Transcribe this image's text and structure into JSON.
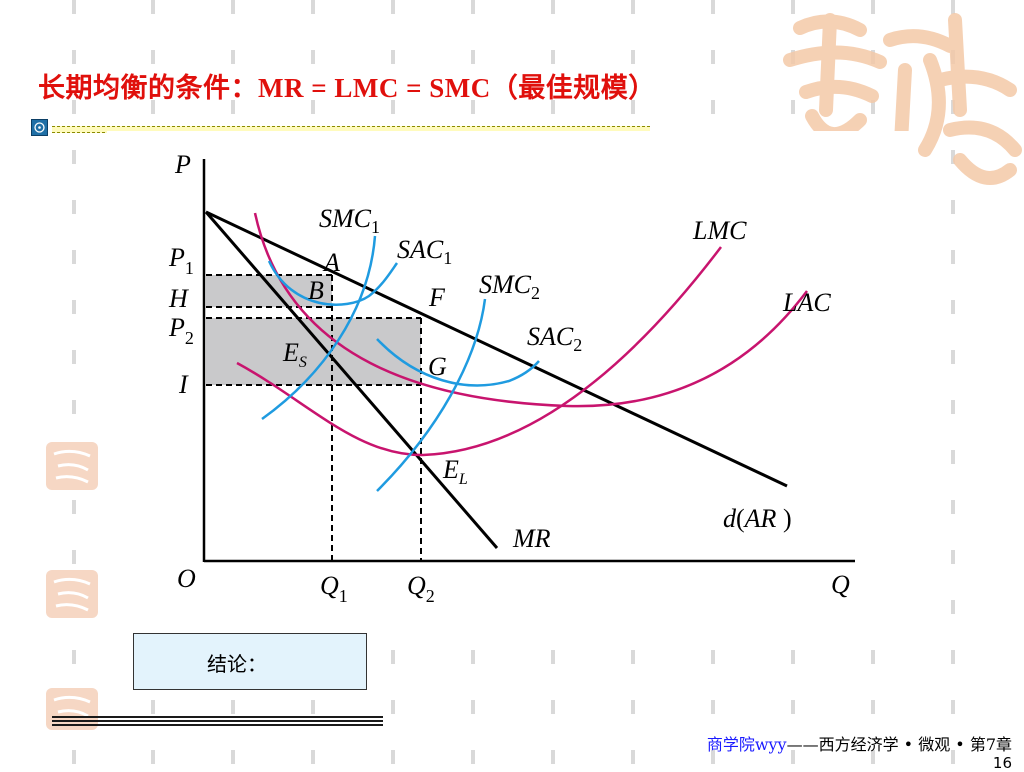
{
  "slide": {
    "title_cn": "长期均衡的条件：",
    "title_formula": "MR = LMC = SMC",
    "title_suffix": "（最佳规模）",
    "conclusion_label": "结论：",
    "footer_school": "商学院wyy",
    "footer_course": "——西方经济学 • 微观 • 第7章",
    "page_number": "16"
  },
  "diagram": {
    "axis_y": "P",
    "axis_x": "Q",
    "origin": "O",
    "price_labels": [
      "P1",
      "H",
      "P2",
      "I"
    ],
    "quantity_labels": [
      "Q1",
      "Q2"
    ],
    "curve_labels": [
      "SMC1",
      "SAC1",
      "SMC2",
      "SAC2",
      "LMC",
      "LAC",
      "d(AR)",
      "MR"
    ],
    "point_labels": [
      "A",
      "B",
      "F",
      "G",
      "ES",
      "EL"
    ]
  },
  "colors": {
    "title": "#e0100c",
    "blue_curves": "#1f9be0",
    "magenta_curves": "#c8146e",
    "shaded_rect": "#c9c9cb",
    "conclusion_bg": "#e3f3fc"
  }
}
